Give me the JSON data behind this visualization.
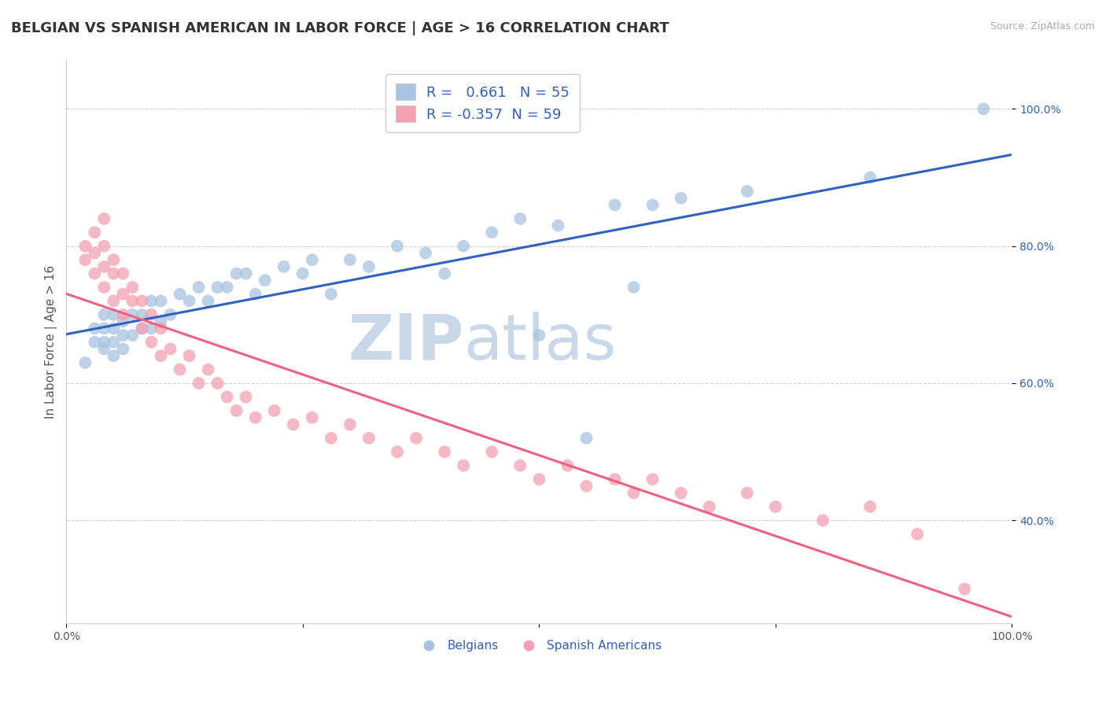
{
  "title": "BELGIAN VS SPANISH AMERICAN IN LABOR FORCE | AGE > 16 CORRELATION CHART",
  "source_text": "Source: ZipAtlas.com",
  "ylabel": "In Labor Force | Age > 16",
  "xlabel": "",
  "xlim": [
    0.0,
    1.0
  ],
  "ylim": [
    0.25,
    1.07
  ],
  "x_ticks": [
    0.0,
    0.25,
    0.5,
    0.75,
    1.0
  ],
  "x_tick_labels": [
    "0.0%",
    "",
    "",
    "",
    "100.0%"
  ],
  "y_ticks": [
    0.4,
    0.6,
    0.8,
    1.0
  ],
  "y_tick_labels": [
    "40.0%",
    "60.0%",
    "80.0%",
    "100.0%"
  ],
  "belgian_R": 0.661,
  "belgian_N": 55,
  "spanish_R": -0.357,
  "spanish_N": 59,
  "belgian_color": "#a8c4e0",
  "spanish_color": "#f4a0b0",
  "belgian_line_color": "#3060c0",
  "spanish_line_color": "#f06080",
  "watermark_zip": "ZIP",
  "watermark_atlas": "atlas",
  "watermark_color": "#c8d8e8",
  "belgian_x": [
    0.02,
    0.03,
    0.03,
    0.04,
    0.04,
    0.04,
    0.04,
    0.05,
    0.05,
    0.05,
    0.05,
    0.06,
    0.06,
    0.06,
    0.07,
    0.07,
    0.08,
    0.08,
    0.09,
    0.09,
    0.1,
    0.1,
    0.11,
    0.12,
    0.13,
    0.14,
    0.15,
    0.16,
    0.17,
    0.18,
    0.19,
    0.2,
    0.21,
    0.23,
    0.25,
    0.26,
    0.28,
    0.3,
    0.32,
    0.35,
    0.38,
    0.4,
    0.42,
    0.45,
    0.48,
    0.5,
    0.52,
    0.55,
    0.58,
    0.6,
    0.62,
    0.65,
    0.72,
    0.85,
    0.97
  ],
  "belgian_y": [
    0.63,
    0.66,
    0.68,
    0.65,
    0.66,
    0.68,
    0.7,
    0.64,
    0.66,
    0.68,
    0.7,
    0.65,
    0.67,
    0.69,
    0.67,
    0.7,
    0.68,
    0.7,
    0.68,
    0.72,
    0.69,
    0.72,
    0.7,
    0.73,
    0.72,
    0.74,
    0.72,
    0.74,
    0.74,
    0.76,
    0.76,
    0.73,
    0.75,
    0.77,
    0.76,
    0.78,
    0.73,
    0.78,
    0.77,
    0.8,
    0.79,
    0.76,
    0.8,
    0.82,
    0.84,
    0.67,
    0.83,
    0.52,
    0.86,
    0.74,
    0.86,
    0.87,
    0.88,
    0.9,
    1.0
  ],
  "spanish_x": [
    0.02,
    0.02,
    0.03,
    0.03,
    0.03,
    0.04,
    0.04,
    0.04,
    0.04,
    0.05,
    0.05,
    0.05,
    0.06,
    0.06,
    0.06,
    0.07,
    0.07,
    0.08,
    0.08,
    0.09,
    0.09,
    0.1,
    0.1,
    0.11,
    0.12,
    0.13,
    0.14,
    0.15,
    0.16,
    0.17,
    0.18,
    0.19,
    0.2,
    0.22,
    0.24,
    0.26,
    0.28,
    0.3,
    0.32,
    0.35,
    0.37,
    0.4,
    0.42,
    0.45,
    0.48,
    0.5,
    0.53,
    0.55,
    0.58,
    0.6,
    0.62,
    0.65,
    0.68,
    0.72,
    0.75,
    0.8,
    0.85,
    0.9,
    0.95
  ],
  "spanish_y": [
    0.78,
    0.8,
    0.76,
    0.79,
    0.82,
    0.74,
    0.77,
    0.8,
    0.84,
    0.72,
    0.76,
    0.78,
    0.7,
    0.73,
    0.76,
    0.72,
    0.74,
    0.68,
    0.72,
    0.7,
    0.66,
    0.68,
    0.64,
    0.65,
    0.62,
    0.64,
    0.6,
    0.62,
    0.6,
    0.58,
    0.56,
    0.58,
    0.55,
    0.56,
    0.54,
    0.55,
    0.52,
    0.54,
    0.52,
    0.5,
    0.52,
    0.5,
    0.48,
    0.5,
    0.48,
    0.46,
    0.48,
    0.45,
    0.46,
    0.44,
    0.46,
    0.44,
    0.42,
    0.44,
    0.42,
    0.4,
    0.42,
    0.38,
    0.3
  ],
  "grid_color": "#d0d0d0",
  "background_color": "#ffffff",
  "title_fontsize": 13,
  "axis_label_fontsize": 11,
  "tick_fontsize": 10,
  "legend_fontsize": 13
}
